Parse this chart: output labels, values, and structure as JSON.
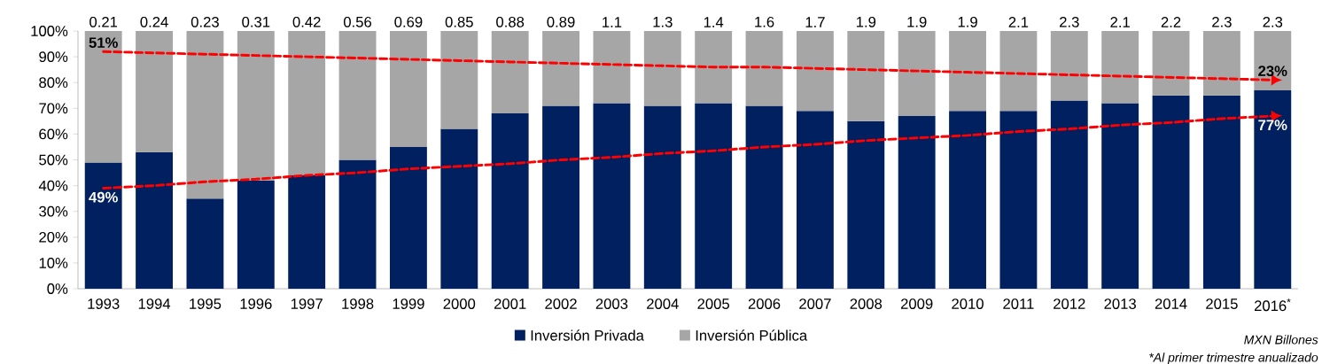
{
  "chart_data": {
    "type": "bar",
    "stacked": true,
    "categories": [
      "1993",
      "1994",
      "1995",
      "1996",
      "1997",
      "1998",
      "1999",
      "2000",
      "2001",
      "2002",
      "2003",
      "2004",
      "2005",
      "2006",
      "2007",
      "2008",
      "2009",
      "2010",
      "2011",
      "2012",
      "2013",
      "2014",
      "2015",
      "2016$^{*}$"
    ],
    "series": [
      {
        "name": "Inversión Privada",
        "color": "#002060",
        "values": [
          49,
          53,
          35,
          42,
          44,
          50,
          55,
          62,
          68,
          71,
          72,
          71,
          72,
          71,
          69,
          65,
          67,
          69,
          69,
          73,
          72,
          75,
          75,
          77
        ]
      },
      {
        "name": "Inversión Pública",
        "color": "#a6a6a6",
        "values": [
          51,
          47,
          65,
          58,
          56,
          50,
          45,
          38,
          32,
          29,
          28,
          29,
          28,
          29,
          31,
          35,
          33,
          31,
          31,
          27,
          28,
          25,
          25,
          23
        ]
      },
      {
        "type": "line",
        "color": "#ff0000",
        "line_style": "dashed",
        "marker": "none",
        "values": [
          39,
          40,
          41.5,
          42.5,
          44,
          45,
          46.5,
          47.5,
          48.5,
          50,
          51,
          52.5,
          53.5,
          55,
          56,
          57.5,
          58.5,
          59.5,
          61,
          62,
          63.5,
          64.5,
          66,
          67
        ]
      },
      {
        "type": "line",
        "color": "#ff0000",
        "line_style": "dashed",
        "marker": "none",
        "values": [
          92,
          91.5,
          91,
          90.5,
          90,
          89.5,
          89,
          88.5,
          88,
          87.5,
          87,
          86.5,
          86,
          86,
          85.5,
          85,
          84.5,
          84,
          83.5,
          83,
          82.5,
          82,
          81.5,
          81
        ]
      }
    ],
    "ylim": [
      0,
      100
    ],
    "yticks": [
      {
        "value": 0,
        "label": "0%"
      },
      {
        "value": 10,
        "label": "10%"
      },
      {
        "value": 20,
        "label": "20%"
      },
      {
        "value": 30,
        "label": "30%"
      },
      {
        "value": 40,
        "label": "40%"
      },
      {
        "value": 50,
        "label": "50%"
      },
      {
        "value": 60,
        "label": "60%"
      },
      {
        "value": 70,
        "label": "70%"
      },
      {
        "value": 80,
        "label": "80%"
      },
      {
        "value": 90,
        "label": "90%"
      },
      {
        "value": 100,
        "label": "100%"
      }
    ],
    "legend": "bottom",
    "annotations": [
      {
        "text": "0.21",
        "x": "1993",
        "y": 100
      },
      {
        "text": "0.24",
        "x": "1994",
        "y": 100
      },
      {
        "text": "0.23",
        "x": "1995",
        "y": 100
      },
      {
        "text": "0.31",
        "x": "1996",
        "y": 100
      },
      {
        "text": "0.42",
        "x": "1997",
        "y": 100
      },
      {
        "text": "0.56",
        "x": "1998",
        "y": 100
      },
      {
        "text": "0.69",
        "x": "1999",
        "y": 100
      },
      {
        "text": "0.85",
        "x": "2000",
        "y": 100
      },
      {
        "text": "0.88",
        "x": "2001",
        "y": 100
      },
      {
        "text": "0.89",
        "x": "2002",
        "y": 100
      },
      {
        "text": "1.1",
        "x": "2003",
        "y": 100
      },
      {
        "text": "1.3",
        "x": "2004",
        "y": 100
      },
      {
        "text": "1.4",
        "x": "2005",
        "y": 100
      },
      {
        "text": "1.6",
        "x": "2006",
        "y": 100
      },
      {
        "text": "1.7",
        "x": "2007",
        "y": 100
      },
      {
        "text": "1.9",
        "x": "2008",
        "y": 100
      },
      {
        "text": "1.9",
        "x": "2009",
        "y": 100
      },
      {
        "text": "1.9",
        "x": "2010",
        "y": 100
      },
      {
        "text": "2.1",
        "x": "2011",
        "y": 100
      },
      {
        "text": "2.3",
        "x": "2012",
        "y": 100
      },
      {
        "text": "2.1",
        "x": "2013",
        "y": 100
      },
      {
        "text": "2.2",
        "x": "2014",
        "y": 100
      },
      {
        "text": "2.3",
        "x": "2015",
        "y": 100
      },
      {
        "text": "2.3",
        "x": "2016$^{*}$",
        "y": 100
      },
      {
        "text": "49%",
        "x": "1993",
        "y": 39
      },
      {
        "text": "51%",
        "x": "1993",
        "y": 92
      },
      {
        "text": "23%",
        "x": "2016$^{*}$",
        "y": 81
      },
      {
        "text": "77%",
        "x": "2016$^{*}$",
        "y": 67
      },
      "MXN Billones",
      "*Al primer trimestre anualizado"
    ]
  }
}
